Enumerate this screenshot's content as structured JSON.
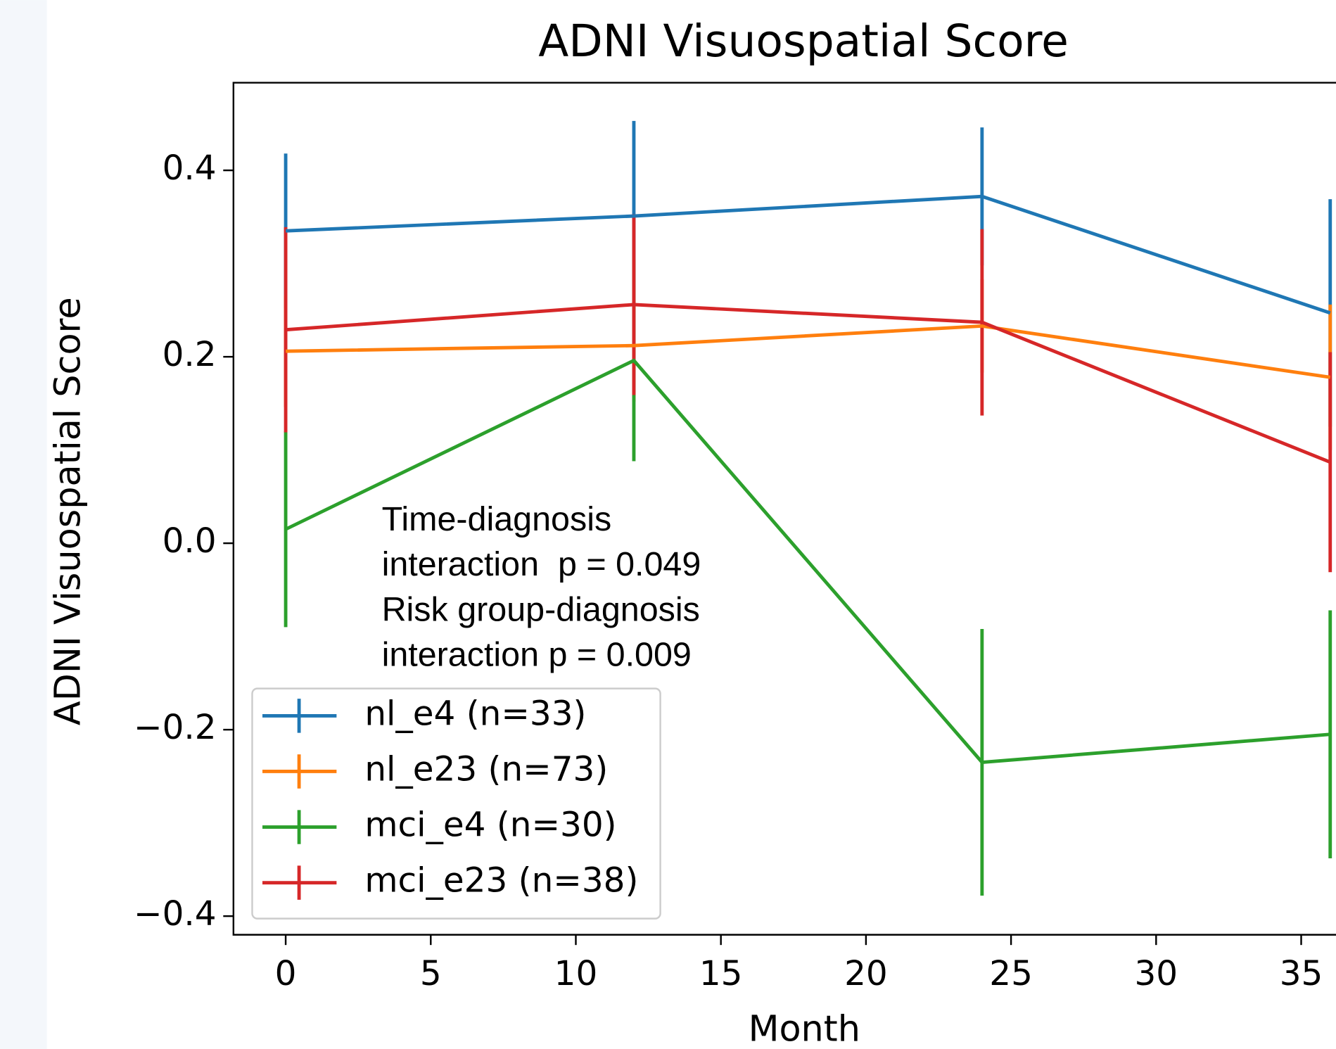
{
  "chart_data": {
    "type": "line",
    "title": "ADNI Visuospatial Score",
    "x_label": "Month",
    "y_label": "ADNI Visuospatial Score",
    "x": [
      0,
      12,
      24,
      36
    ],
    "series": [
      {
        "name": "nl_e4 (n=33)",
        "color": "#1f77b4",
        "values": [
          0.335,
          0.351,
          0.372,
          0.247
        ],
        "errors": [
          0.083,
          0.102,
          0.074,
          0.122
        ]
      },
      {
        "name": "nl_e23 (n=73)",
        "color": "#ff7f0e",
        "values": [
          0.206,
          0.212,
          0.233,
          0.178
        ],
        "errors": [
          0.06,
          0.06,
          0.05,
          0.078
        ]
      },
      {
        "name": "mci_e4 (n=30)",
        "color": "#2ca02c",
        "values": [
          0.015,
          0.196,
          -0.235,
          -0.205
        ],
        "errors": [
          0.105,
          0.108,
          0.143,
          0.133
        ]
      },
      {
        "name": "mci_e23 (n=38)",
        "color": "#d62728",
        "values": [
          0.229,
          0.256,
          0.237,
          0.087
        ],
        "errors": [
          0.11,
          0.097,
          0.1,
          0.118
        ]
      }
    ],
    "xlim": [
      -1.8,
      36.2
    ],
    "ylim": [
      -0.42,
      0.494
    ],
    "xticks": [
      0,
      5,
      10,
      15,
      20,
      25,
      30,
      35
    ],
    "yticks": [
      {
        "value": -0.4,
        "label": "−0.4"
      },
      {
        "value": -0.2,
        "label": "−0.2"
      },
      {
        "value": 0,
        "label": "0.0"
      },
      {
        "value": 0.2,
        "label": "0.2"
      },
      {
        "value": 0.4,
        "label": "0.4"
      }
    ],
    "annotation": [
      "Time-diagnosis",
      "interaction  p = 0.049",
      "Risk group-diagnosis",
      "interaction p = 0.009"
    ],
    "legend": "lower left"
  }
}
